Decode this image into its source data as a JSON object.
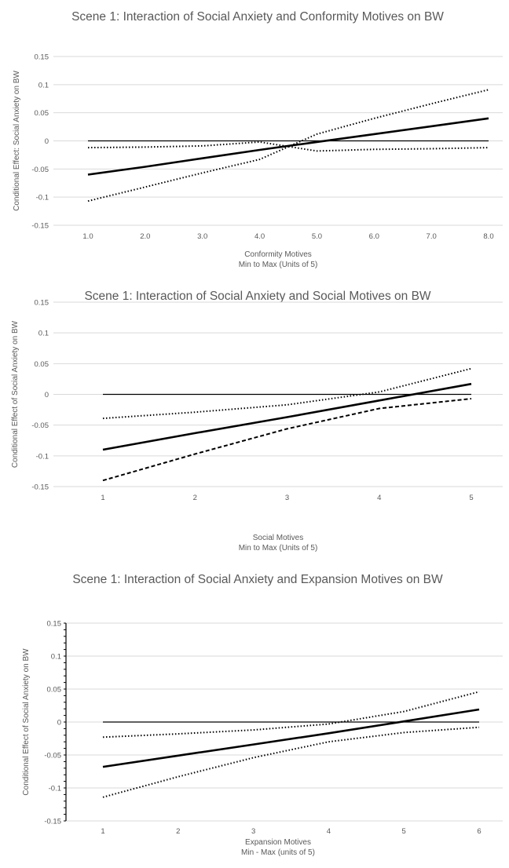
{
  "chart_data": [
    {
      "type": "line",
      "title": "Scene 1: Interaction of Social Anxiety and Conformity Motives on BW",
      "xlabel": "Conformity Motives",
      "xlabel2": "Min to Max (Units of 5)",
      "ylabel": "Conditional Effect: Social Anxiety on BW",
      "categories": [
        "1.0",
        "2.0",
        "3.0",
        "4.0",
        "5.0",
        "6.0",
        "7.0",
        "8.0"
      ],
      "x": [
        1,
        2,
        3,
        4,
        5,
        6,
        7,
        8
      ],
      "y_ticks": [
        "0.15",
        "0.1",
        "0.05",
        "0",
        "-0.05",
        "-0.1",
        "-0.15"
      ],
      "ylim": [
        -0.15,
        0.15
      ],
      "grid": true,
      "series": [
        {
          "style": "zero",
          "values": [
            0,
            0,
            0,
            0,
            0,
            0,
            0,
            0
          ]
        },
        {
          "style": "solid",
          "values": [
            -0.06,
            -0.046,
            -0.031,
            -0.016,
            -0.002,
            0.012,
            0.026,
            0.04
          ]
        },
        {
          "style": "dotted",
          "values": [
            -0.107,
            -0.082,
            -0.057,
            -0.033,
            0.012,
            0.04,
            0.066,
            0.091
          ]
        },
        {
          "style": "dotted",
          "values": [
            -0.012,
            -0.011,
            -0.009,
            -0.002,
            -0.018,
            -0.015,
            -0.014,
            -0.012
          ]
        }
      ]
    },
    {
      "type": "line",
      "title": "Scene 1: Interaction of Social Anxiety and Social Motives on BW",
      "xlabel": "Social Motives",
      "xlabel2": "Min to Max (Units of 5)",
      "ylabel": "Conditional Effect of Social Anxiety on BW",
      "categories": [
        "1",
        "2",
        "3",
        "4",
        "5"
      ],
      "x": [
        1,
        2,
        3,
        4,
        5
      ],
      "y_ticks": [
        "0.15",
        "0.1",
        "0.05",
        "0",
        "-0.05",
        "-0.1",
        "-0.15"
      ],
      "ylim": [
        -0.15,
        0.15
      ],
      "grid": true,
      "series": [
        {
          "style": "zero",
          "values": [
            0,
            0,
            0,
            0,
            0
          ]
        },
        {
          "style": "solid",
          "values": [
            -0.09,
            -0.063,
            -0.037,
            -0.01,
            0.017
          ]
        },
        {
          "style": "dotted",
          "values": [
            -0.039,
            -0.029,
            -0.017,
            0.004,
            0.042
          ]
        },
        {
          "style": "dashed",
          "values": [
            -0.14,
            -0.097,
            -0.056,
            -0.023,
            -0.007
          ]
        }
      ]
    },
    {
      "type": "line",
      "title": "Scene 1: Interaction of Social Anxiety and Expansion Motives on BW",
      "xlabel": "Expansion Motives",
      "xlabel2": "Min - Max (units of 5)",
      "ylabel": "Conditional Effect of Social Anxiety on BW",
      "categories": [
        "1",
        "2",
        "3",
        "4",
        "5",
        "6"
      ],
      "x": [
        1,
        2,
        3,
        4,
        5,
        6
      ],
      "y_ticks": [
        "0.15",
        "0.1",
        "0.05",
        "0",
        "-0.05",
        "-0.1",
        "-0.15"
      ],
      "ylim": [
        -0.15,
        0.15
      ],
      "grid": true,
      "series": [
        {
          "style": "zero",
          "values": [
            0,
            0,
            0,
            0,
            0,
            0
          ]
        },
        {
          "style": "solid",
          "values": [
            -0.068,
            -0.051,
            -0.034,
            -0.017,
            0.001,
            0.019
          ]
        },
        {
          "style": "dotted",
          "values": [
            -0.114,
            -0.083,
            -0.054,
            -0.03,
            -0.016,
            -0.008
          ]
        },
        {
          "style": "dotted",
          "values": [
            -0.023,
            -0.018,
            -0.012,
            -0.003,
            0.016,
            0.046
          ]
        }
      ]
    }
  ]
}
